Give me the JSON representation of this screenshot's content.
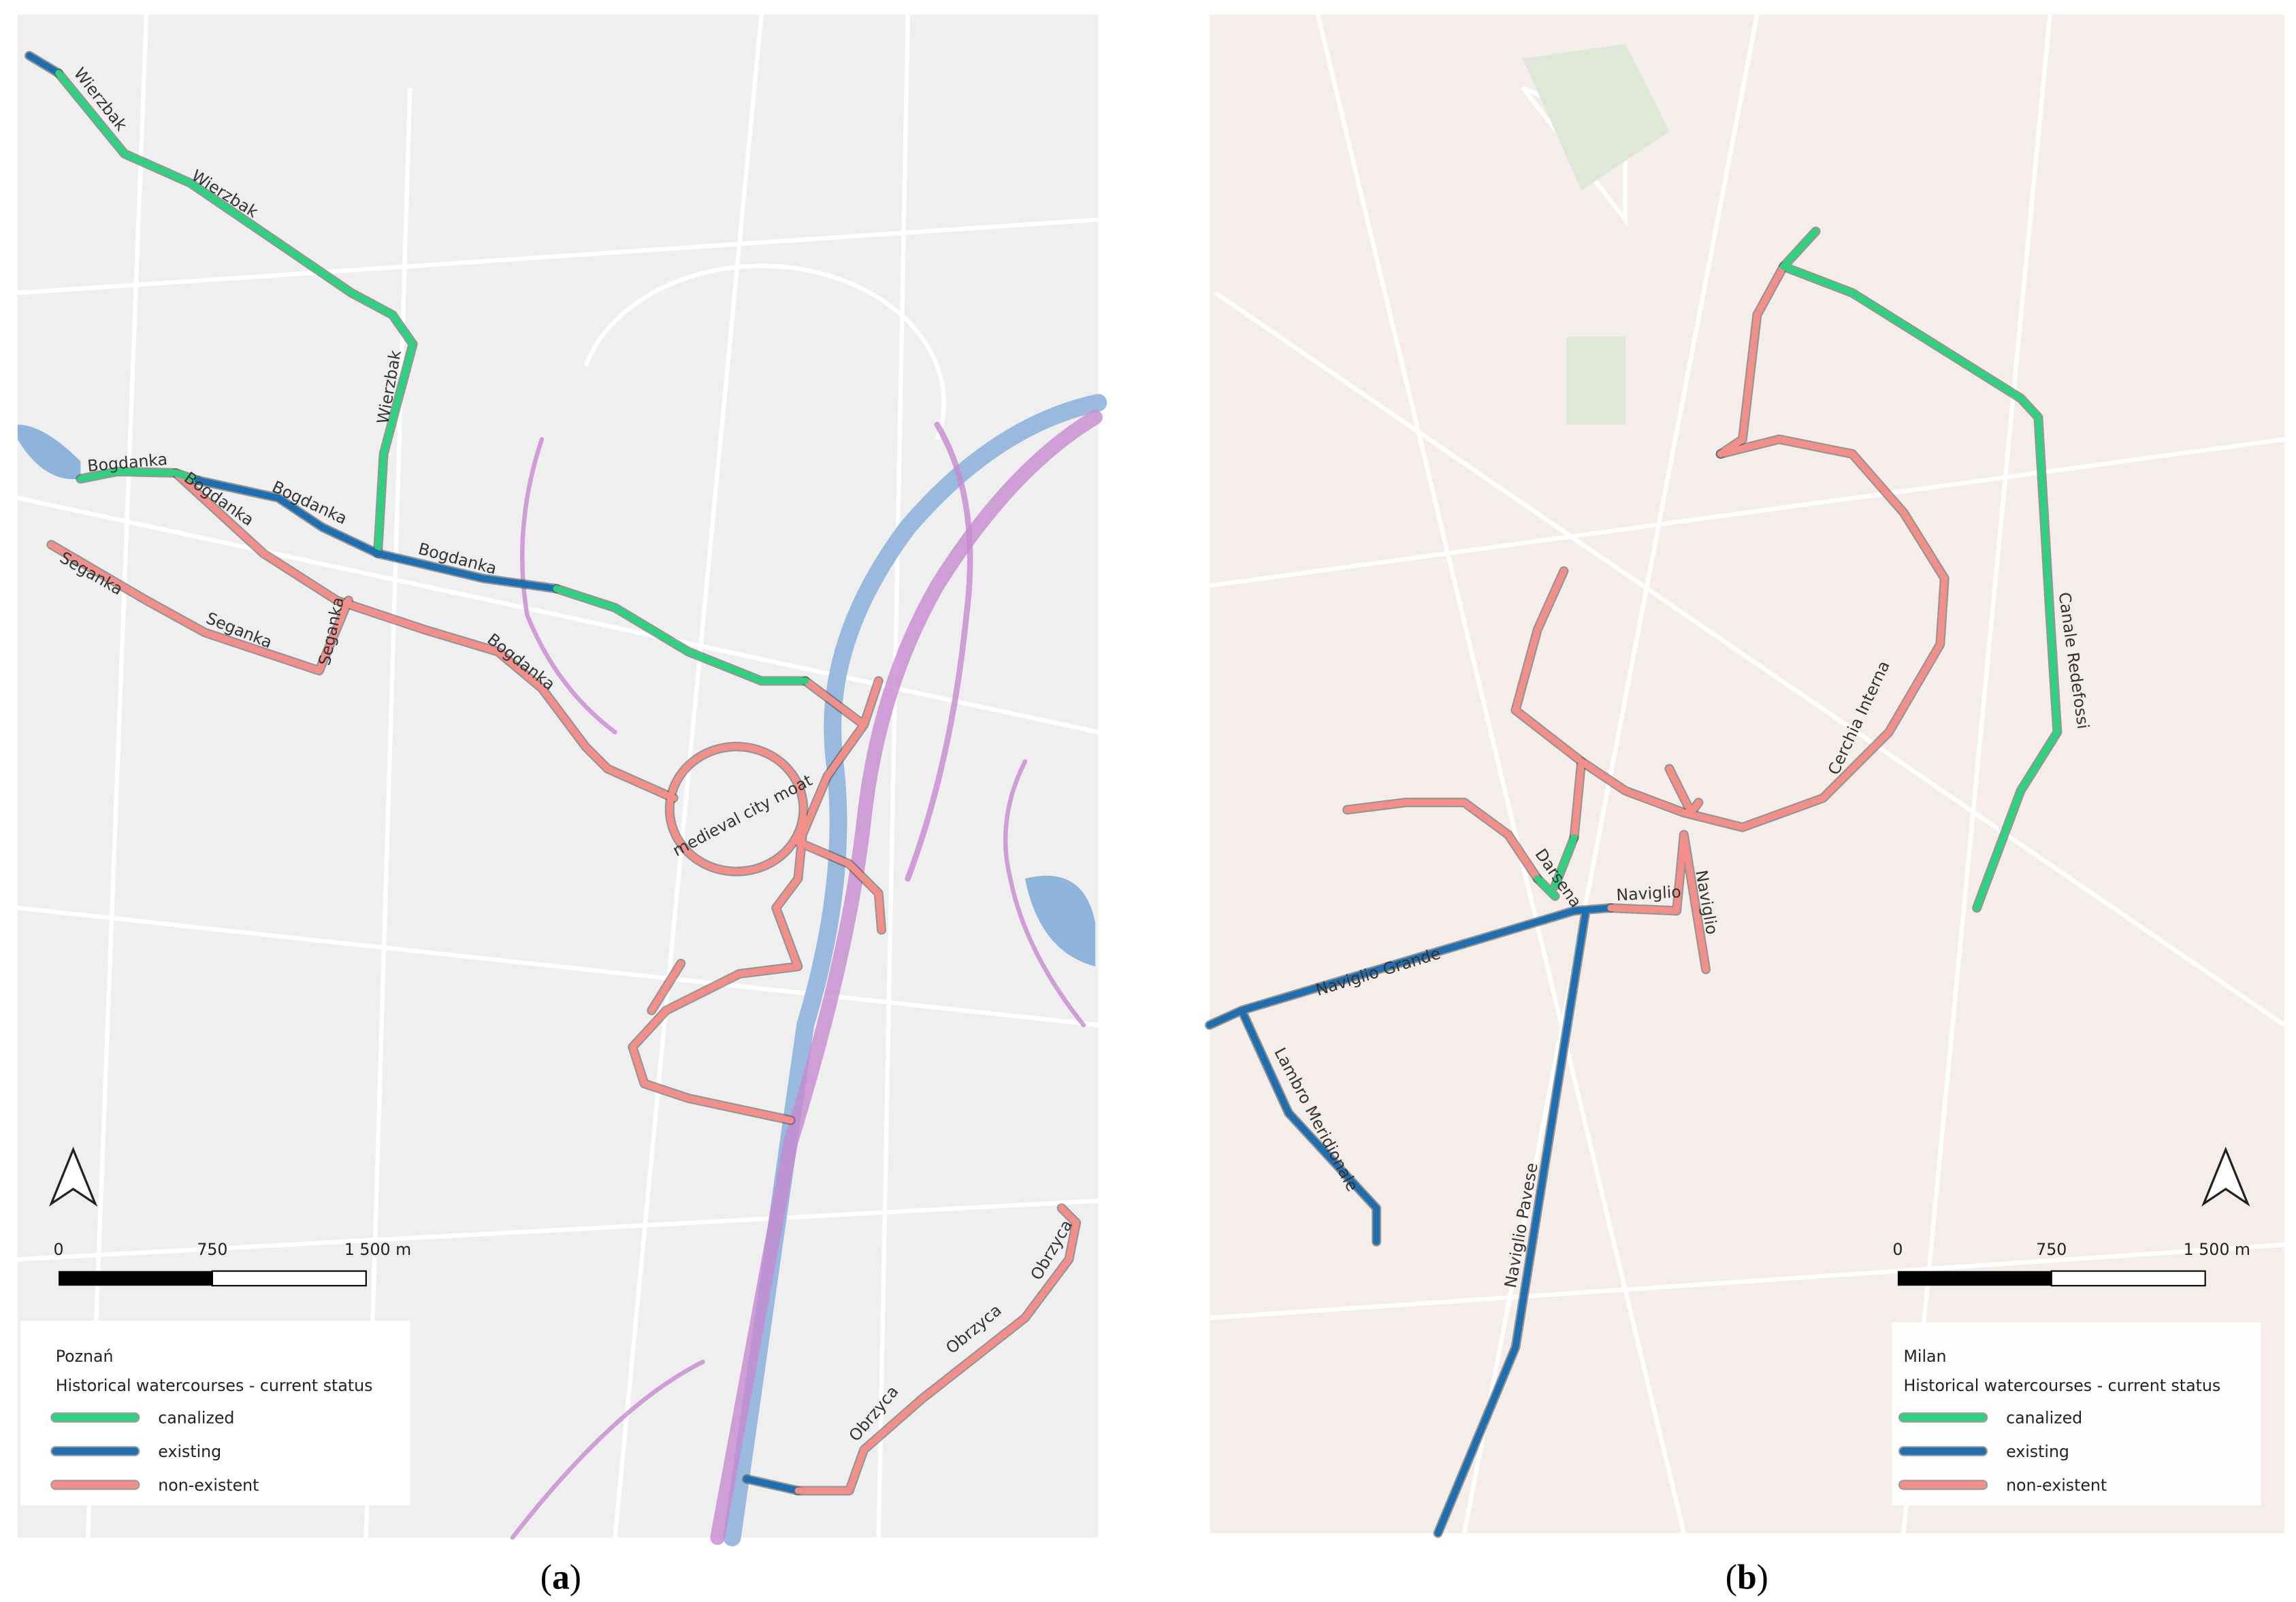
{
  "panels": [
    {
      "caption": "a",
      "map_labels": [
        "Wierzbak",
        "Wierzbak",
        "Wierzbak",
        "Bogdanka",
        "Bogdanka",
        "Bogdanka",
        "Bogdanka",
        "Bogdanka",
        "Seganka",
        "Seganka",
        "Seganka",
        "medieval city moat",
        "Obrzyca",
        "Obrzyca",
        "Obrzyca"
      ],
      "scale_bar": [
        "0",
        "750",
        "1 500 m"
      ],
      "legend": {
        "title": "Poznań",
        "subtitle": "Historical watercourses - current status",
        "items": [
          {
            "label": "canalized",
            "color": "#2fd07f"
          },
          {
            "label": "existing",
            "color": "#1f6eb0"
          },
          {
            "label": "non-existent",
            "color": "#f28f8a"
          }
        ]
      }
    },
    {
      "caption": "b",
      "map_labels": [
        "Naviglio Grande",
        "Lambro Meridionale",
        "Naviglio Pavese",
        "Darsena",
        "Naviglio",
        "Naviglio",
        "Cerchia Interna",
        "Canale Redefossi"
      ],
      "scale_bar": [
        "0",
        "750",
        "1 500 m"
      ],
      "legend": {
        "title": "Milan",
        "subtitle": "Historical watercourses - current status",
        "items": [
          {
            "label": "canalized",
            "color": "#2fd07f"
          },
          {
            "label": "existing",
            "color": "#1f6eb0"
          },
          {
            "label": "non-existent",
            "color": "#f28f8a"
          }
        ]
      }
    }
  ]
}
